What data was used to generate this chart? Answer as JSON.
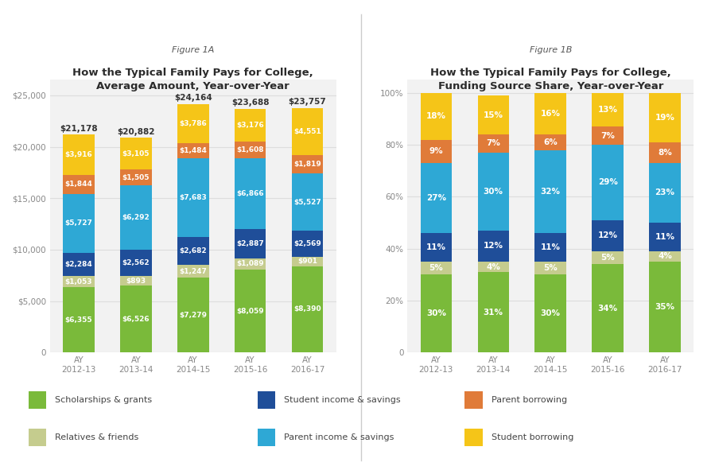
{
  "years": [
    "AY\n2012-13",
    "AY\n2013-14",
    "AY\n2014-15",
    "AY\n2015-16",
    "AY\n2016-17"
  ],
  "fig1a_title_top": "Figure 1A",
  "fig1a_title": "How the Typical Family Pays for College,\nAverage Amount, Year-over-Year",
  "fig1b_title_top": "Figure 1B",
  "fig1b_title": "How the Typical Family Pays for College,\nFunding Source Share, Year-over-Year",
  "categories": [
    "Scholarships & grants",
    "Relatives & friends",
    "Student income & savings",
    "Parent income & savings",
    "Parent borrowing",
    "Student borrowing"
  ],
  "colors": [
    "#7aba3a",
    "#c5cc8e",
    "#1f4e99",
    "#2ea8d5",
    "#e07b39",
    "#f5c518"
  ],
  "amounts": [
    [
      6355,
      1053,
      2284,
      5727,
      1844,
      3916
    ],
    [
      6526,
      893,
      2562,
      6292,
      1505,
      3105
    ],
    [
      7279,
      1247,
      2682,
      7683,
      1484,
      3786
    ],
    [
      8059,
      1089,
      2887,
      6866,
      1608,
      3176
    ],
    [
      8390,
      901,
      2569,
      5527,
      1819,
      4551
    ]
  ],
  "totals": [
    21178,
    20882,
    24164,
    23688,
    23757
  ],
  "pcts": [
    [
      30,
      5,
      11,
      27,
      9,
      18
    ],
    [
      31,
      4,
      12,
      30,
      7,
      15
    ],
    [
      30,
      5,
      11,
      32,
      6,
      16
    ],
    [
      34,
      5,
      12,
      29,
      7,
      13
    ],
    [
      35,
      4,
      11,
      23,
      8,
      19
    ]
  ],
  "bg_color": "#f2f2f2",
  "grid_color": "#dddddd",
  "bar_width": 0.55,
  "fig1a_ylim": [
    0,
    26500
  ],
  "fig1a_yticks": [
    0,
    5000,
    10000,
    15000,
    20000,
    25000
  ],
  "fig1a_ytick_labels": [
    "0",
    "$5,000",
    "$10,000",
    "$15,000",
    "$20,000",
    "$25,000"
  ],
  "fig1b_yticks": [
    0,
    20,
    40,
    60,
    80,
    100
  ],
  "fig1b_ytick_labels": [
    "0",
    "20%",
    "40%",
    "60%",
    "80%",
    "100%"
  ]
}
